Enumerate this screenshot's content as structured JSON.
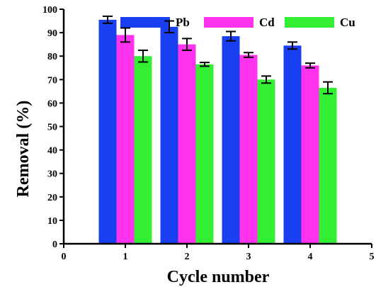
{
  "chart_data": {
    "type": "bar",
    "xlabel": "Cycle number",
    "ylabel": "Removal (%)",
    "xlim": [
      0,
      5
    ],
    "ylim": [
      0,
      100
    ],
    "x_ticks": [
      0,
      1,
      2,
      3,
      4,
      5
    ],
    "y_ticks": [
      0,
      10,
      20,
      30,
      40,
      50,
      60,
      70,
      80,
      90,
      100
    ],
    "categories": [
      1,
      2,
      3,
      4
    ],
    "grid": false,
    "legend_position": "top",
    "series": [
      {
        "name": "Pb",
        "color": "#1a3ff0",
        "values": [
          95.5,
          92.5,
          88.5,
          84.5
        ],
        "errors": [
          1.5,
          2.5,
          2.0,
          1.5
        ]
      },
      {
        "name": "Cd",
        "color": "#ff33ee",
        "values": [
          89.0,
          85.0,
          80.5,
          76.0
        ],
        "errors": [
          3.0,
          2.5,
          1.0,
          1.0
        ]
      },
      {
        "name": "Cu",
        "color": "#33ee33",
        "values": [
          80.0,
          76.5,
          70.0,
          66.5
        ],
        "errors": [
          2.5,
          0.8,
          1.5,
          2.5
        ]
      }
    ]
  }
}
